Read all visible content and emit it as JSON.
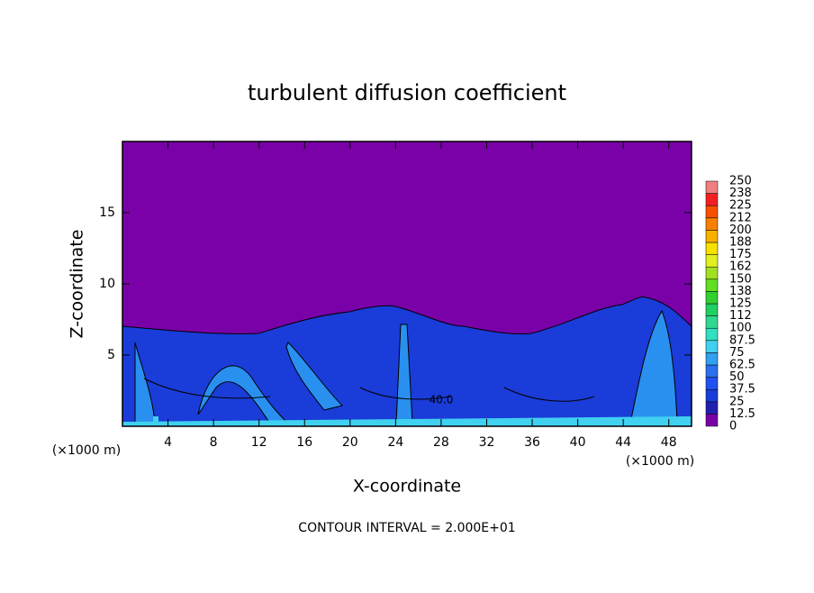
{
  "chart_data": {
    "type": "contour",
    "title": "turbulent diffusion coefficient",
    "x_label": "X-coordinate",
    "y_label": "Z-coordinate",
    "x_unit": "(×1000 m)",
    "y_unit": "(×1000 m)",
    "footnote": "CONTOUR INTERVAL = 2.000E+01",
    "contour_label": "40.0",
    "xlim": [
      0,
      50
    ],
    "xticks": [
      4,
      8,
      12,
      16,
      20,
      24,
      28,
      32,
      36,
      40,
      44,
      48
    ],
    "ylim": [
      0,
      20
    ],
    "yticks": [
      5,
      10,
      15
    ],
    "colorbar": {
      "ticks": [
        0,
        12.5,
        25,
        37.5,
        50,
        62.5,
        75,
        87.5,
        100,
        112,
        125,
        138,
        150,
        162,
        175,
        188,
        200,
        212,
        225,
        238,
        250
      ],
      "colors": [
        "#7a00a8",
        "#2020b0",
        "#1a3cd8",
        "#2050f0",
        "#2a70f0",
        "#30a0f0",
        "#40d0f0",
        "#30e0c0",
        "#30d890",
        "#20d060",
        "#30d030",
        "#60e020",
        "#a0e020",
        "#e0f020",
        "#f8e000",
        "#f8b000",
        "#f88000",
        "#f85000",
        "#f02020",
        "#f08080"
      ]
    }
  }
}
